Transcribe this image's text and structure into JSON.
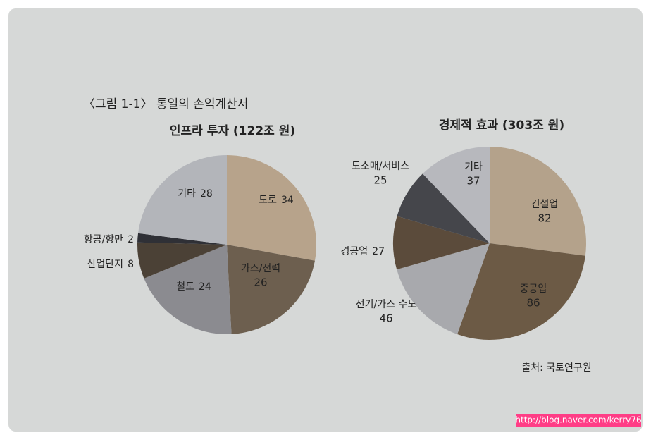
{
  "figure_title": "〈그림 1-1〉 통일의 손익계산서",
  "source": "출처: 국토연구원",
  "watermark": "http://blog.naver.com/kerry76",
  "chart_data": [
    {
      "type": "pie",
      "title": "인프라 투자 (122조 원)",
      "categories": [
        "도로",
        "가스/전력",
        "철도",
        "산업단지",
        "항공/항만",
        "기타"
      ],
      "values": [
        34,
        26,
        24,
        8,
        2,
        28
      ],
      "colors": [
        "#b7a38b",
        "#6d5f4f",
        "#8b8b90",
        "#4b4136",
        "#2f3036",
        "#b3b5ba"
      ]
    },
    {
      "type": "pie",
      "title": "경제적 효과 (303조 원)",
      "categories": [
        "건설업",
        "중공업",
        "전기/가스 수도",
        "경공업",
        "도소매/서비스",
        "기타"
      ],
      "values": [
        82,
        86,
        46,
        27,
        25,
        37
      ],
      "colors": [
        "#b4a28b",
        "#6c5a45",
        "#a8a9ad",
        "#5b4b3b",
        "#45464b",
        "#b7b8bd"
      ]
    }
  ]
}
